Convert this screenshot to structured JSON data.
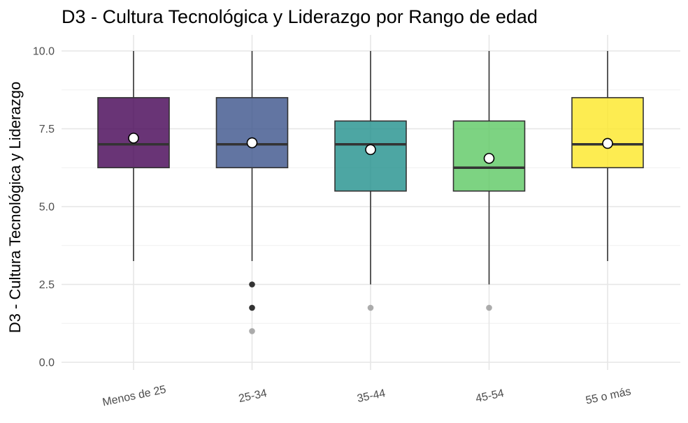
{
  "chart_data": {
    "type": "boxplot",
    "title": "D3 - Cultura Tecnológica y Liderazgo por Rango de edad",
    "xlabel": "",
    "ylabel": "D3 - Cultura Tecnológica y Liderazgo",
    "ylim": [
      -0.25,
      10.4
    ],
    "yticks": [
      0.0,
      2.5,
      5.0,
      7.5,
      10.0
    ],
    "ytick_labels": [
      "0.0",
      "2.5",
      "5.0",
      "7.5",
      "10.0"
    ],
    "grid": true,
    "legend": "none",
    "categories": [
      "Menos de 25",
      "25-34",
      "35-44",
      "45-54",
      "55 o más"
    ],
    "boxes": [
      {
        "category": "Menos de 25",
        "min": 3.25,
        "q1": 6.25,
        "median": 7.0,
        "q3": 8.5,
        "max": 10.0,
        "mean": 7.2,
        "outliers": [],
        "color": "#440154"
      },
      {
        "category": "25-34",
        "min": 3.25,
        "q1": 6.25,
        "median": 7.0,
        "q3": 8.5,
        "max": 10.0,
        "mean": 7.05,
        "outliers": [
          2.5,
          1.75,
          1.0
        ],
        "color": "#3b528b"
      },
      {
        "category": "35-44",
        "min": 2.5,
        "q1": 5.5,
        "median": 7.0,
        "q3": 7.75,
        "max": 10.0,
        "mean": 6.83,
        "outliers": [
          1.75
        ],
        "color": "#21908c"
      },
      {
        "category": "45-54",
        "min": 2.5,
        "q1": 5.5,
        "median": 6.25,
        "q3": 7.75,
        "max": 10.0,
        "mean": 6.55,
        "outliers": [
          1.75
        ],
        "color": "#5dc863"
      },
      {
        "category": "55 o más",
        "min": 3.25,
        "q1": 6.25,
        "median": 7.0,
        "q3": 8.5,
        "max": 10.0,
        "mean": 7.03,
        "outliers": [],
        "color": "#fde725"
      }
    ]
  }
}
